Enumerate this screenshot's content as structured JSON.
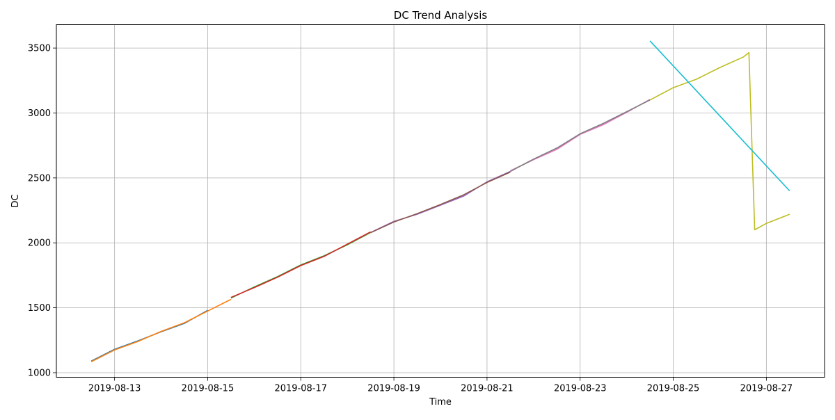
{
  "chart_data": {
    "type": "line",
    "title": "DC Trend Analysis",
    "xlabel": "Time",
    "ylabel": "DC",
    "x_ticks": [
      "2019-08-13",
      "2019-08-15",
      "2019-08-17",
      "2019-08-19",
      "2019-08-21",
      "2019-08-23",
      "2019-08-25",
      "2019-08-27"
    ],
    "y_ticks": [
      1000,
      1500,
      2000,
      2500,
      3000,
      3500
    ],
    "xlim": [
      "2019-08-11 18:00",
      "2019-08-28 06:00"
    ],
    "ylim": [
      965,
      3680
    ],
    "grid": true,
    "legend": "none",
    "series": [
      {
        "color": "#1f77b4",
        "points": [
          [
            "2019-08-12 12:00",
            1090
          ],
          [
            "2019-08-13 00:00",
            1180
          ],
          [
            "2019-08-13 12:00",
            1245
          ],
          [
            "2019-08-14 00:00",
            1315
          ],
          [
            "2019-08-14 12:00",
            1380
          ],
          [
            "2019-08-15 00:00",
            1480
          ]
        ]
      },
      {
        "color": "#ff7f0e",
        "points": [
          [
            "2019-08-12 12:00",
            1085
          ],
          [
            "2019-08-13 00:00",
            1175
          ],
          [
            "2019-08-13 12:00",
            1240
          ],
          [
            "2019-08-14 00:00",
            1318
          ],
          [
            "2019-08-14 12:00",
            1385
          ],
          [
            "2019-08-15 00:00",
            1475
          ],
          [
            "2019-08-15 12:00",
            1565
          ]
        ]
      },
      {
        "color": "#2ca02c",
        "points": [
          [
            "2019-08-15 12:00",
            1575
          ],
          [
            "2019-08-16 00:00",
            1660
          ],
          [
            "2019-08-16 12:00",
            1740
          ],
          [
            "2019-08-17 00:00",
            1830
          ],
          [
            "2019-08-17 12:00",
            1900
          ],
          [
            "2019-08-18 00:00",
            1985
          ],
          [
            "2019-08-18 12:00",
            2080
          ]
        ]
      },
      {
        "color": "#d62728",
        "points": [
          [
            "2019-08-15 12:00",
            1580
          ],
          [
            "2019-08-16 00:00",
            1655
          ],
          [
            "2019-08-16 12:00",
            1735
          ],
          [
            "2019-08-17 00:00",
            1825
          ],
          [
            "2019-08-17 12:00",
            1895
          ],
          [
            "2019-08-18 00:00",
            1990
          ],
          [
            "2019-08-18 12:00",
            2085
          ]
        ]
      },
      {
        "color": "#9467bd",
        "points": [
          [
            "2019-08-18 12:00",
            2080
          ],
          [
            "2019-08-19 00:00",
            2165
          ],
          [
            "2019-08-19 12:00",
            2220
          ],
          [
            "2019-08-20 00:00",
            2290
          ],
          [
            "2019-08-20 12:00",
            2360
          ],
          [
            "2019-08-21 00:00",
            2470
          ],
          [
            "2019-08-21 12:00",
            2550
          ]
        ]
      },
      {
        "color": "#8c564b",
        "points": [
          [
            "2019-08-18 12:00",
            2078
          ],
          [
            "2019-08-19 00:00",
            2160
          ],
          [
            "2019-08-19 12:00",
            2225
          ],
          [
            "2019-08-20 00:00",
            2295
          ],
          [
            "2019-08-20 12:00",
            2370
          ],
          [
            "2019-08-21 00:00",
            2465
          ],
          [
            "2019-08-21 12:00",
            2545
          ]
        ]
      },
      {
        "color": "#e377c2",
        "points": [
          [
            "2019-08-21 12:00",
            2555
          ],
          [
            "2019-08-22 00:00",
            2640
          ],
          [
            "2019-08-22 12:00",
            2720
          ],
          [
            "2019-08-23 00:00",
            2835
          ],
          [
            "2019-08-23 12:00",
            2910
          ],
          [
            "2019-08-24 00:00",
            3005
          ],
          [
            "2019-08-24 12:00",
            3105
          ]
        ]
      },
      {
        "color": "#7f7f7f",
        "points": [
          [
            "2019-08-21 12:00",
            2550
          ],
          [
            "2019-08-22 00:00",
            2645
          ],
          [
            "2019-08-22 12:00",
            2730
          ],
          [
            "2019-08-23 00:00",
            2840
          ],
          [
            "2019-08-23 12:00",
            2920
          ],
          [
            "2019-08-24 00:00",
            3010
          ],
          [
            "2019-08-24 12:00",
            3100
          ]
        ]
      },
      {
        "color": "#bcbd22",
        "points": [
          [
            "2019-08-24 12:00",
            3100
          ],
          [
            "2019-08-25 00:00",
            3195
          ],
          [
            "2019-08-25 12:00",
            3260
          ],
          [
            "2019-08-26 00:00",
            3350
          ],
          [
            "2019-08-26 12:00",
            3430
          ],
          [
            "2019-08-26 15:00",
            3465
          ],
          [
            "2019-08-26 18:00",
            2100
          ],
          [
            "2019-08-27 00:00",
            2150
          ],
          [
            "2019-08-27 12:00",
            2220
          ]
        ]
      },
      {
        "color": "#17becf",
        "points": [
          [
            "2019-08-24 12:00",
            3555
          ],
          [
            "2019-08-27 12:00",
            2400
          ]
        ]
      }
    ]
  }
}
